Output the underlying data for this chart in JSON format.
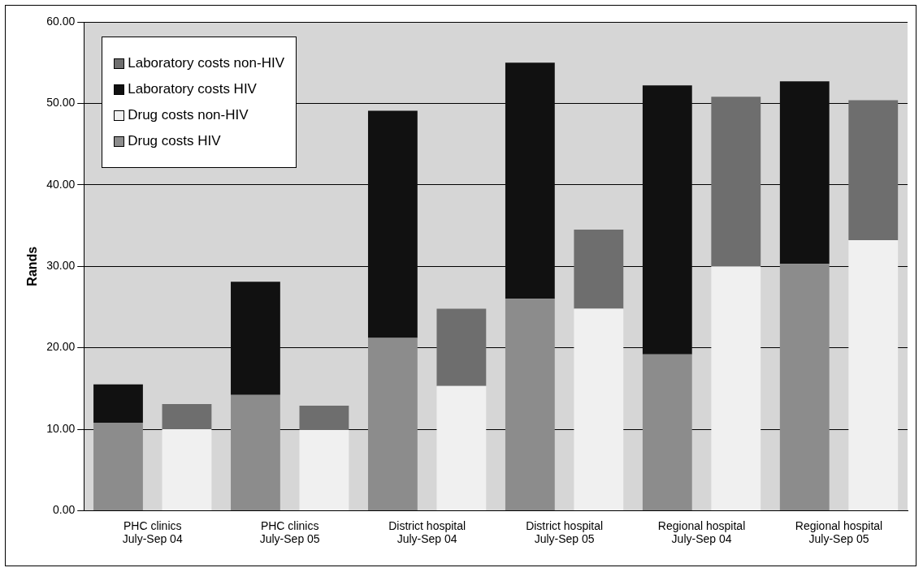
{
  "chart_data": {
    "type": "bar",
    "ylabel": "Rands",
    "stacked": true,
    "categories": [
      "PHC clinics\nJuly-Sep 04",
      null,
      "PHC clinics\nJuly-Sep 05",
      null,
      "District hospital\nJuly-Sep 04",
      null,
      "District hospital\nJuly-Sep 05",
      null,
      "Regional hospital\nJuly-Sep 04",
      null,
      "Regional hospital\nJuly-Sep 05",
      null
    ],
    "series": [
      {
        "name": "Drug costs HIV",
        "color": "#8c8c8c",
        "values": [
          10.8,
          null,
          14.2,
          null,
          21.2,
          null,
          26.0,
          null,
          19.2,
          null,
          30.3,
          null
        ]
      },
      {
        "name": "Drug costs non-HIV",
        "color": "#f0f0f0",
        "values": [
          null,
          10.0,
          null,
          9.9,
          null,
          15.3,
          null,
          24.8,
          null,
          30.0,
          null,
          33.2
        ]
      },
      {
        "name": "Laboratory costs HIV",
        "color": "#111111",
        "values": [
          4.7,
          null,
          13.9,
          null,
          27.9,
          null,
          29.0,
          null,
          33.0,
          null,
          22.4,
          null
        ]
      },
      {
        "name": "Laboratory costs non-HIV",
        "color": "#6e6e6e",
        "values": [
          null,
          3.1,
          null,
          3.0,
          null,
          9.5,
          null,
          9.7,
          null,
          20.8,
          null,
          17.2
        ]
      }
    ],
    "ylim": [
      0,
      60
    ],
    "yticks": [
      {
        "value": 0,
        "label": "0.00"
      },
      {
        "value": 10,
        "label": "10.00"
      },
      {
        "value": 20,
        "label": "20.00"
      },
      {
        "value": 30,
        "label": "30.00"
      },
      {
        "value": 40,
        "label": "40.00"
      },
      {
        "value": 50,
        "label": "50.00"
      },
      {
        "value": 60,
        "label": "60.00"
      }
    ],
    "grid": "y",
    "legend": "top left"
  }
}
